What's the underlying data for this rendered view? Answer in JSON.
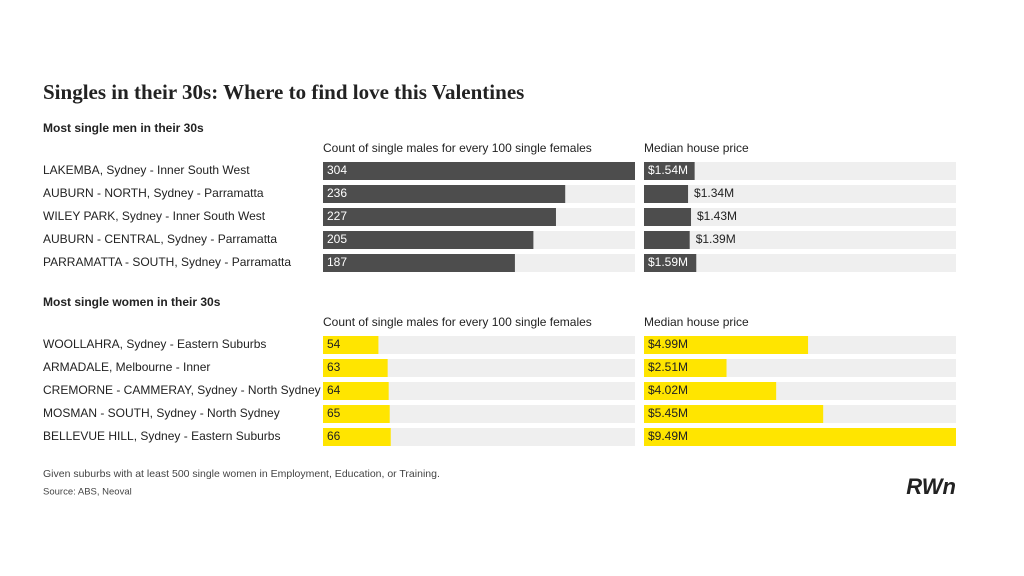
{
  "title": "Singles in their 30s: Where to find love this Valentines",
  "chart_data": [
    {
      "type": "bar",
      "subtitle": "Most single men in their 30s",
      "categories": [
        "LAKEMBA, Sydney - Inner South West",
        "AUBURN - NORTH, Sydney - Parramatta",
        "WILEY PARK, Sydney - Inner South West",
        "AUBURN - CENTRAL, Sydney - Parramatta",
        "PARRAMATTA - SOUTH, Sydney - Parramatta"
      ],
      "series": [
        {
          "name": "Count of single males for every 100 single females",
          "color": "#4d4d4d",
          "values": [
            304,
            236,
            227,
            205,
            187
          ],
          "xlim": [
            0,
            304
          ]
        },
        {
          "name": "Median house price",
          "color": "#4d4d4d",
          "values": [
            1540000,
            1340000,
            1430000,
            1390000,
            1590000
          ],
          "value_labels": [
            "$1.54M",
            "$1.34M",
            "$1.43M",
            "$1.39M",
            "$1.59M"
          ],
          "xlim": [
            0,
            9490000
          ]
        }
      ]
    },
    {
      "type": "bar",
      "subtitle": "Most single women in their 30s",
      "categories": [
        "WOOLLAHRA, Sydney - Eastern Suburbs",
        "ARMADALE, Melbourne - Inner",
        "CREMORNE - CAMMERAY, Sydney - North Sydney",
        "MOSMAN - SOUTH, Sydney - North Sydney",
        "BELLEVUE HILL, Sydney - Eastern Suburbs"
      ],
      "series": [
        {
          "name": "Count of single males for every 100 single females",
          "color": "#ffe500",
          "values": [
            54,
            63,
            64,
            65,
            66
          ],
          "xlim": [
            0,
            304
          ]
        },
        {
          "name": "Median house price",
          "color": "#ffe500",
          "values": [
            4990000,
            2510000,
            4020000,
            5450000,
            9490000
          ],
          "value_labels": [
            "$4.99M",
            "$2.51M",
            "$4.02M",
            "$5.45M",
            "$9.49M"
          ],
          "xlim": [
            0,
            9490000
          ]
        }
      ]
    }
  ],
  "note": "Given suburbs with at least 500 single women in Employment, Education, or Training.",
  "source": "Source: ABS, Neoval",
  "brand": "RWn"
}
